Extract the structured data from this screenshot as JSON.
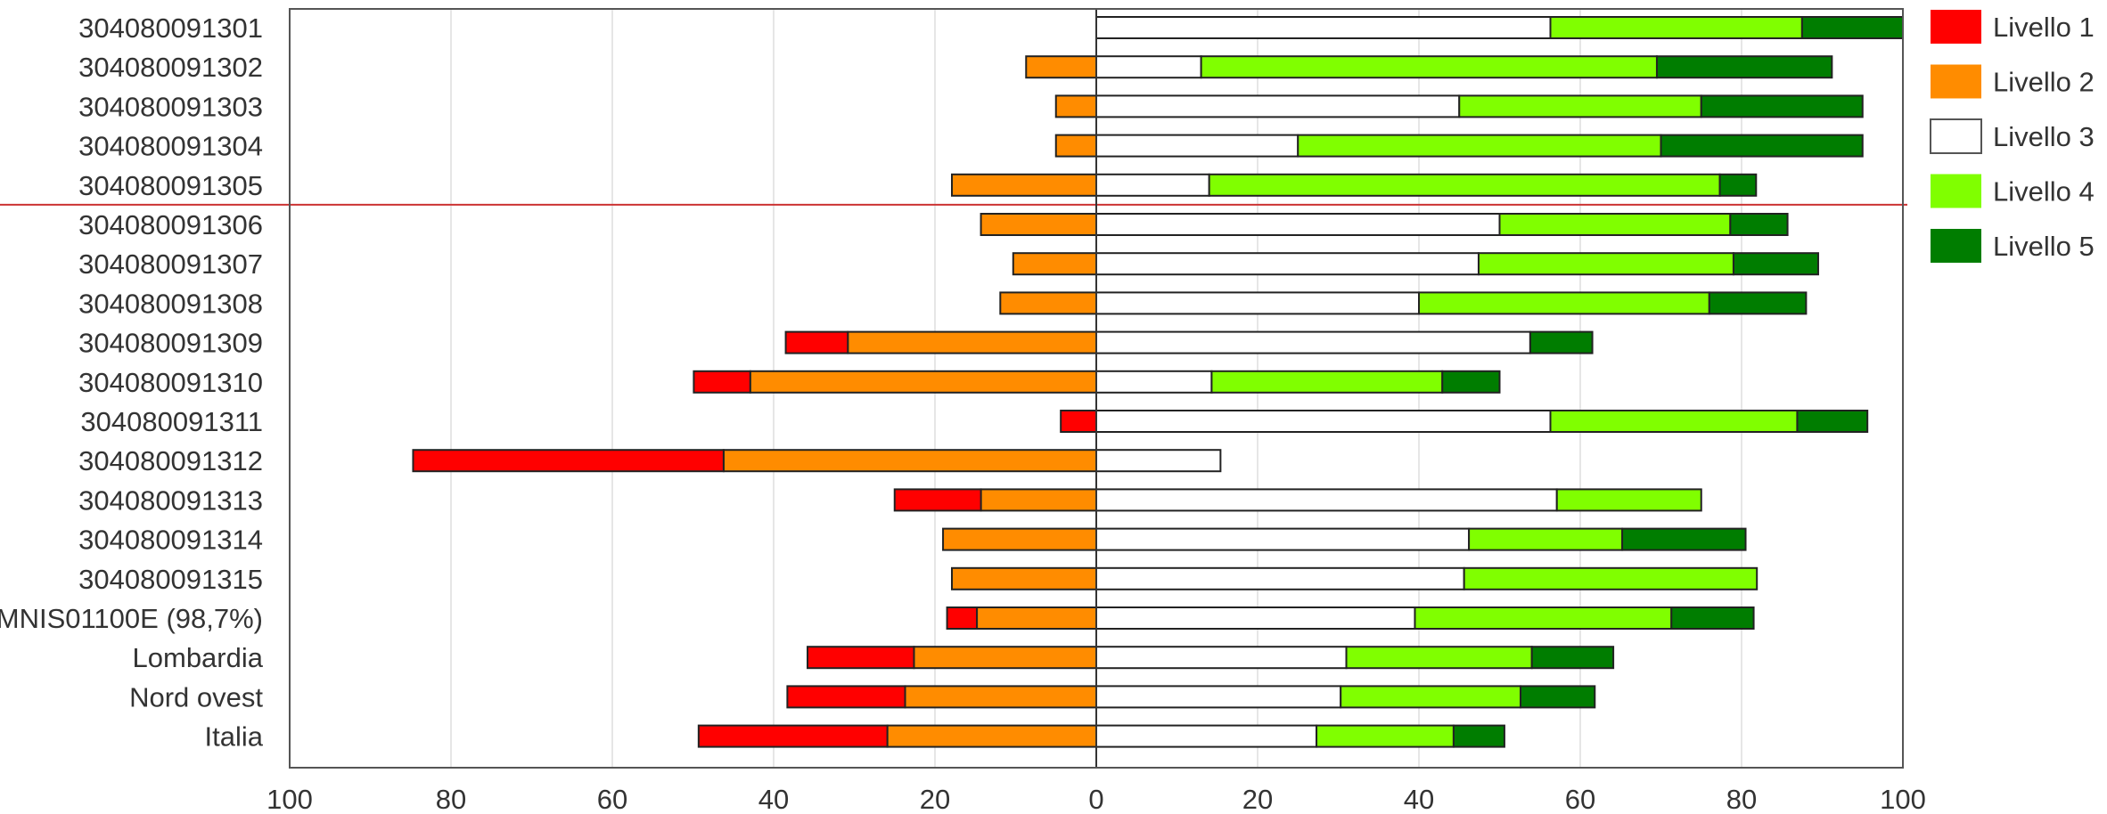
{
  "colors": {
    "Livello 1": "#ff0000",
    "Livello 2": "#ff8c00",
    "Livello 3": "#ffffff",
    "Livello 4": "#80ff00",
    "Livello 5": "#007d00",
    "reference_line": "#cc3333",
    "grid": "#dddddd"
  },
  "chart_data": {
    "type": "bar",
    "orientation": "horizontal-diverging",
    "title": "",
    "xlabel": "",
    "ylabel": "",
    "xlim": [
      -100,
      100
    ],
    "x_ticks": [
      "100",
      "80",
      "60",
      "40",
      "20",
      "0",
      "20",
      "40",
      "60",
      "80",
      "100"
    ],
    "grid": true,
    "legend_position": "right",
    "reference_line_after_category": "304080091305",
    "categories": [
      "304080091301",
      "304080091302",
      "304080091303",
      "304080091304",
      "304080091305",
      "304080091306",
      "304080091307",
      "304080091308",
      "304080091309",
      "304080091310",
      "304080091311",
      "304080091312",
      "304080091313",
      "304080091314",
      "304080091315",
      "MNIS01100E (98,7%)",
      "Lombardia",
      "Nord ovest",
      "Italia"
    ],
    "series": [
      {
        "name": "Livello 1",
        "side": "left",
        "values": [
          0,
          0,
          0,
          0,
          0,
          0,
          0,
          0,
          7.7,
          7.0,
          4.4,
          38.5,
          10.7,
          0,
          0,
          3.7,
          13.2,
          14.6,
          23.4
        ]
      },
      {
        "name": "Livello 2",
        "side": "left",
        "values": [
          0,
          8.7,
          5.0,
          5.0,
          17.9,
          14.3,
          10.3,
          11.9,
          30.8,
          42.9,
          0,
          46.2,
          14.3,
          19.0,
          17.9,
          14.8,
          22.6,
          23.7,
          25.9
        ]
      },
      {
        "name": "Livello 3",
        "side": "right",
        "values": [
          56.3,
          13.0,
          45.0,
          25.0,
          14.0,
          50.0,
          47.4,
          40.0,
          53.8,
          14.3,
          56.3,
          15.4,
          57.1,
          46.2,
          45.6,
          39.5,
          31.0,
          30.3,
          27.3
        ]
      },
      {
        "name": "Livello 4",
        "side": "right",
        "values": [
          31.2,
          56.5,
          30.0,
          45.0,
          63.3,
          28.6,
          31.6,
          36.0,
          0,
          28.6,
          30.6,
          0,
          17.9,
          19.0,
          36.3,
          31.8,
          23.0,
          22.3,
          17.0
        ]
      },
      {
        "name": "Livello 5",
        "side": "right",
        "values": [
          12.5,
          21.7,
          20.0,
          25.0,
          4.5,
          7.1,
          10.5,
          12.0,
          7.7,
          7.1,
          8.7,
          0,
          0,
          15.3,
          0,
          10.2,
          10.1,
          9.2,
          6.3
        ]
      }
    ]
  }
}
